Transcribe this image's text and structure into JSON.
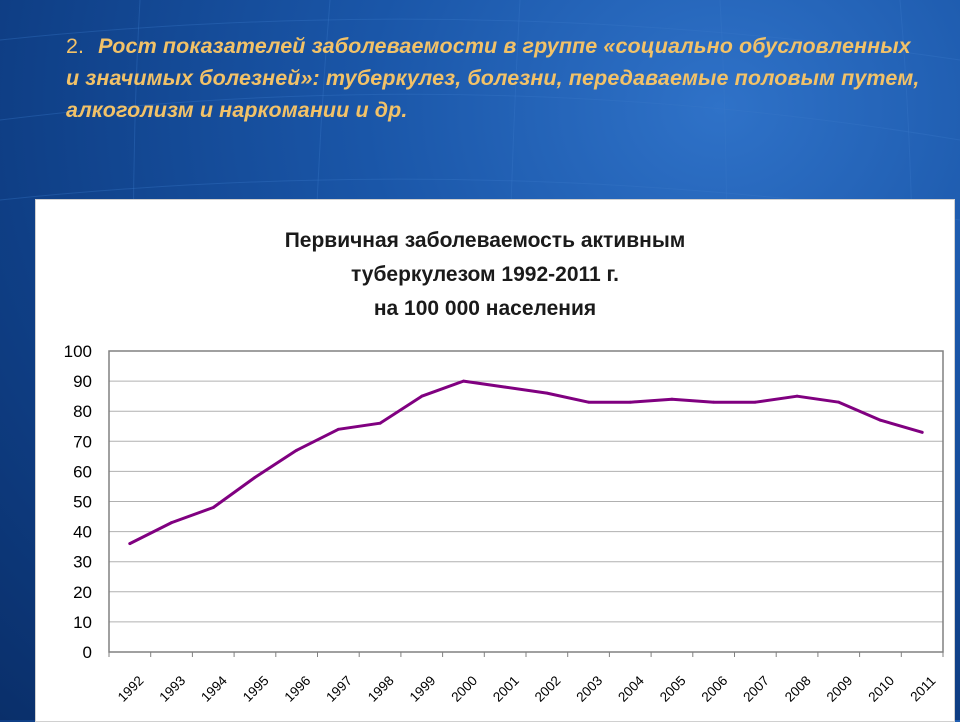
{
  "slide": {
    "number": "2.",
    "heading": "Рост показателей заболеваемости в группе «социально обусловленных и значимых болезней»: туберкулез, болезни, передаваемые половым путем, алкоголизм и наркомании и др."
  },
  "colors": {
    "heading": "#f2c268",
    "background": "#1a56a8",
    "series_line": "#800080",
    "plot_border": "#808080",
    "gridline": "#b0b0b0"
  },
  "chart_data": {
    "type": "line",
    "title_lines": [
      "Первичная заболеваемость активным",
      "туберкулезом 1992-2011 г.",
      "на 100 000 населения"
    ],
    "xlabel": "",
    "ylabel": "",
    "categories": [
      "1992",
      "1993",
      "1994",
      "1995",
      "1996",
      "1997",
      "1998",
      "1999",
      "2000",
      "2001",
      "2002",
      "2003",
      "2004",
      "2005",
      "2006",
      "2007",
      "2008",
      "2009",
      "2010",
      "2011"
    ],
    "series": [
      {
        "values": [
          36,
          43,
          48,
          58,
          67,
          74,
          76,
          85,
          90,
          88,
          86,
          83,
          83,
          84,
          83,
          83,
          85,
          83,
          77,
          73
        ]
      }
    ],
    "ylim": [
      0,
      100
    ],
    "yticks": [
      0,
      10,
      20,
      30,
      40,
      50,
      60,
      70,
      80,
      90,
      100
    ],
    "grid": true,
    "legend": "none"
  }
}
